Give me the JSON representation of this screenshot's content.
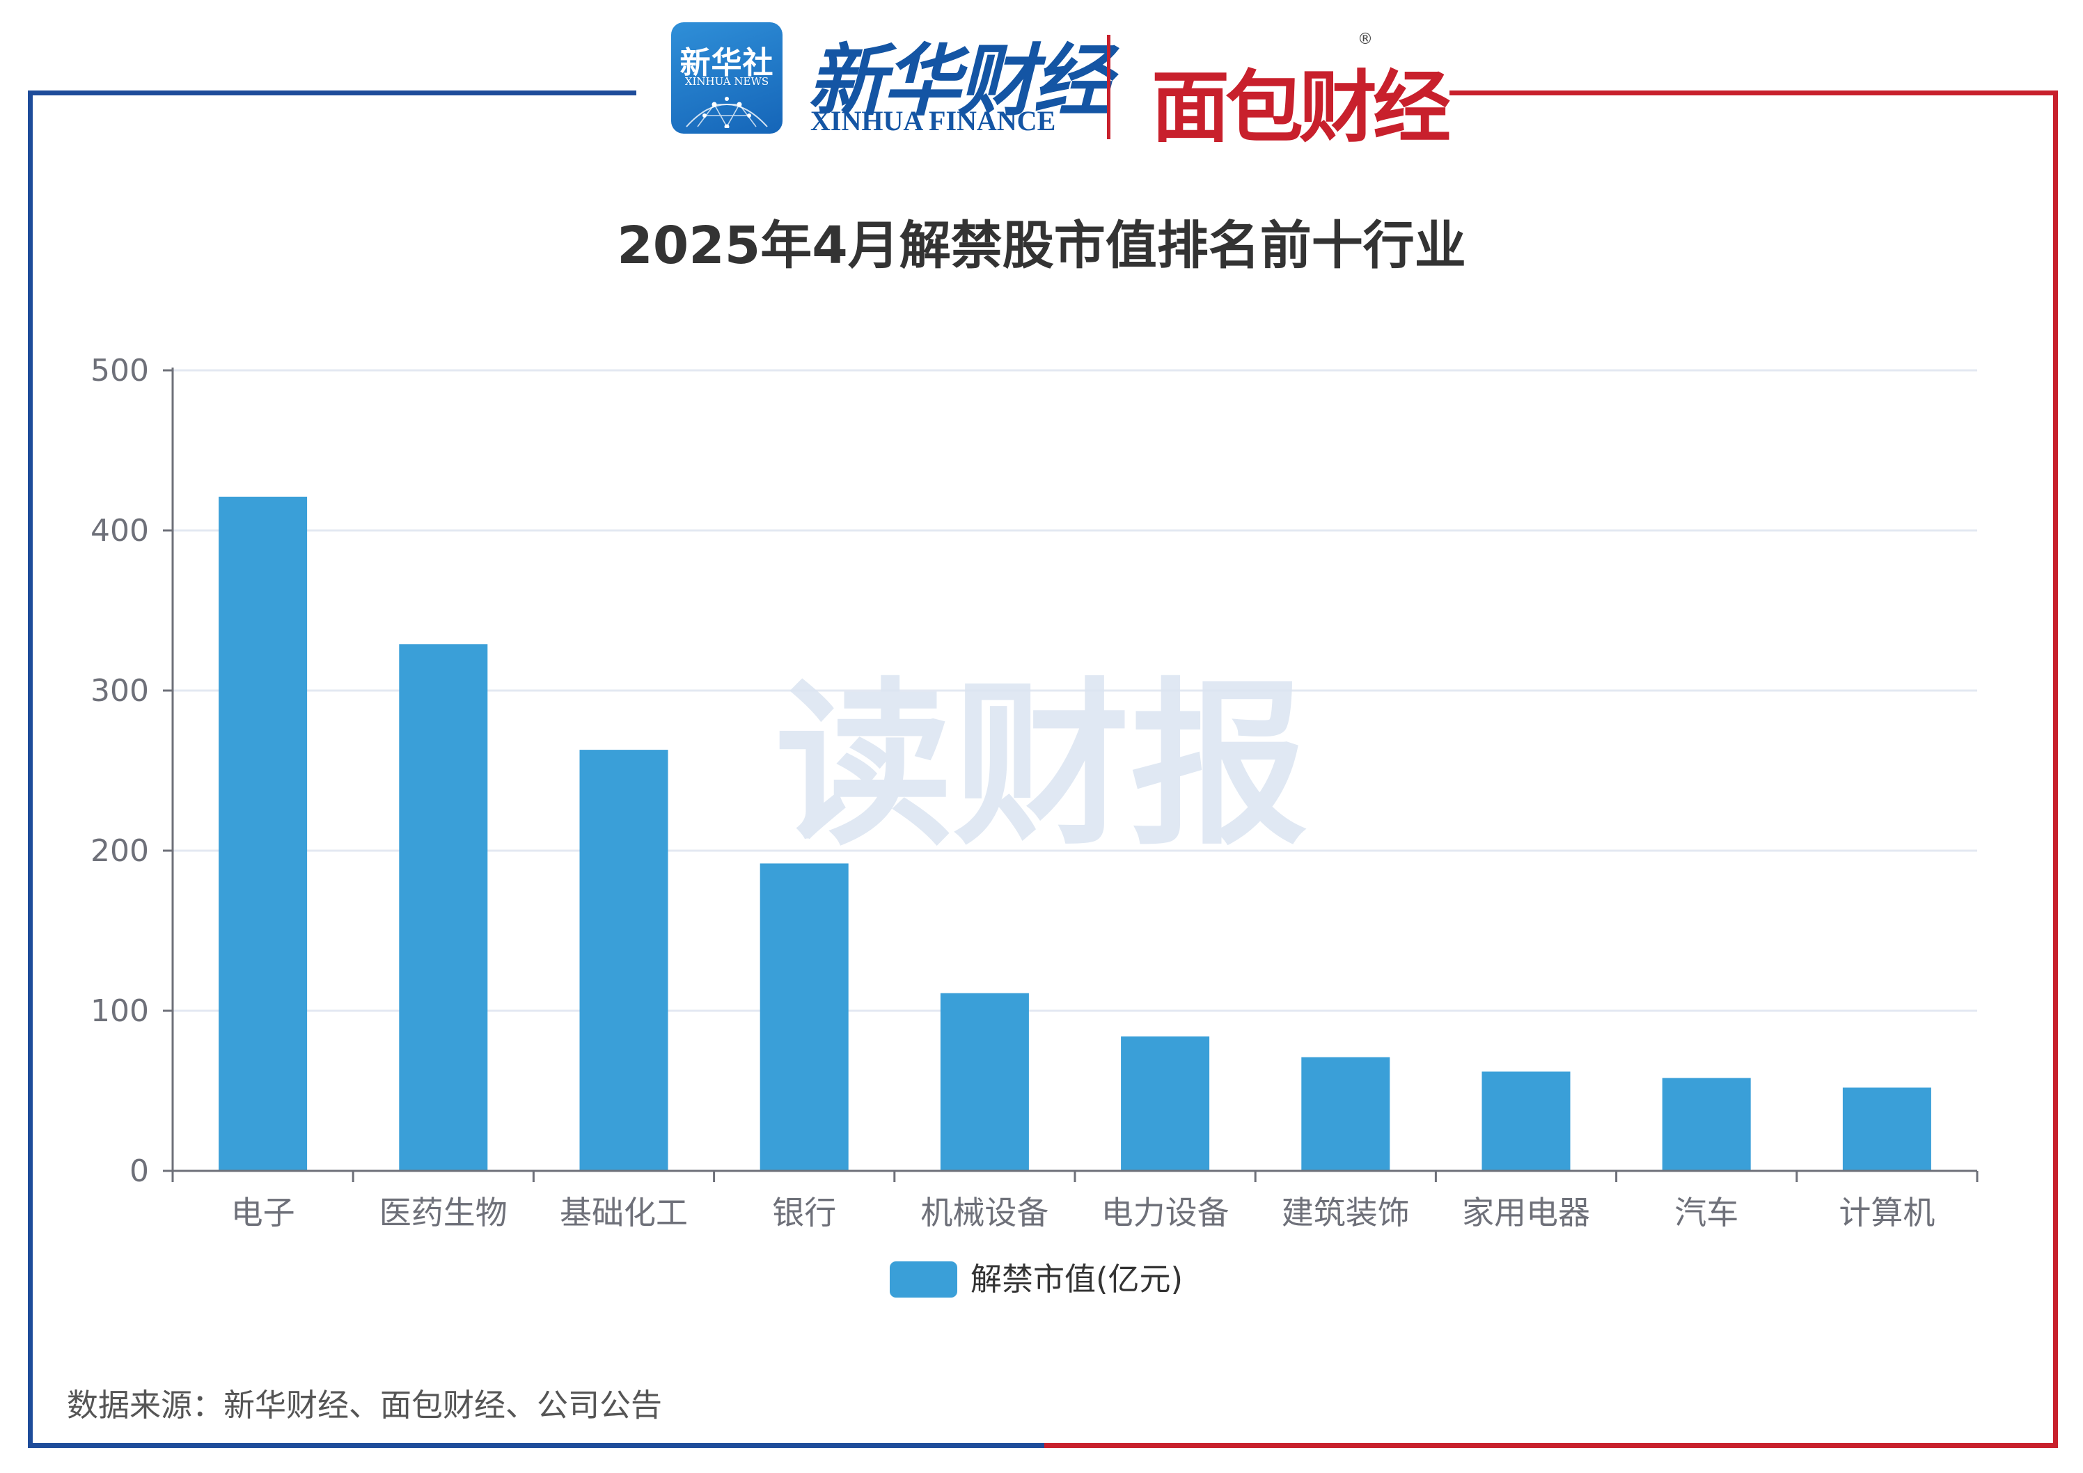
{
  "logos": {
    "xinhua_news_cn": "新华社",
    "xinhua_news_en": "XINHUA NEWS",
    "xinhua_finance_cn": "新华财经",
    "xinhua_finance_en": "XINHUA FINANCE",
    "mianbao_cn": "面包财经",
    "mianbao_reg": "®"
  },
  "watermark": "读财报",
  "footnote": "数据来源：新华财经、面包财经、公司公告",
  "colors": {
    "bar": "#3a9fd8",
    "frame_blue": "#1e4c9a",
    "frame_red": "#c8202c",
    "grid": "#e3e8f2",
    "axis": "#6e7079",
    "title": "#333333"
  },
  "chart_data": {
    "type": "bar",
    "title": "2025年4月解禁股市值排名前十行业",
    "categories": [
      "电子",
      "医药生物",
      "基础化工",
      "银行",
      "机械设备",
      "电力设备",
      "建筑装饰",
      "家用电器",
      "汽车",
      "计算机"
    ],
    "series": [
      {
        "name": "解禁市值(亿元)",
        "values": [
          421,
          329,
          263,
          192,
          111,
          84,
          71,
          62,
          58,
          52
        ]
      }
    ],
    "yticks": [
      "0",
      "100",
      "200",
      "300",
      "400",
      "500"
    ],
    "ylim": [
      0,
      500
    ],
    "grid": true,
    "legend_position": "bottom-center"
  }
}
